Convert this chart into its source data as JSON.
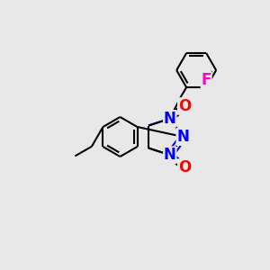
{
  "background_color": "#e8e8e8",
  "bond_color": "#000000",
  "bond_width": 1.5,
  "atom_colors": {
    "N": "#0000ff",
    "O": "#ff0000",
    "F": "#ff00cc",
    "C": "#000000"
  },
  "font_size_atom": 11,
  "fig_w": 3.0,
  "fig_h": 3.0,
  "dpi": 100
}
